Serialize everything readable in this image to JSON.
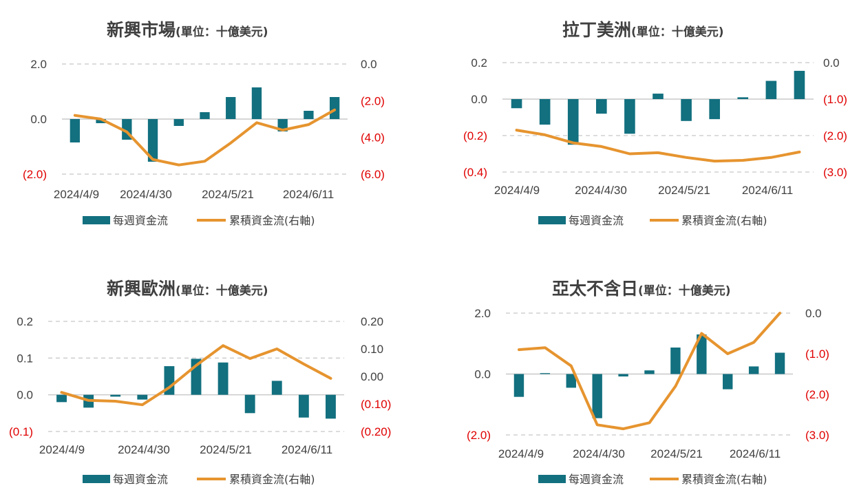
{
  "colors": {
    "bar": "#12707f",
    "line": "#e6942f",
    "negative": "#e00000",
    "text": "#404040"
  },
  "chart_data": [
    {
      "type": "bar+line",
      "title": "新興市場",
      "subtitle": "(單位：十億美元)",
      "legend": [
        "每週資金流",
        "累積資金流(右軸)"
      ],
      "legend_position": "bottom",
      "xlabels": [
        "2024/4/9",
        "2024/4/30",
        "2024/5/21",
        "2024/6/11"
      ],
      "bar_values": [
        -0.85,
        -0.15,
        -0.75,
        -1.55,
        -0.25,
        0.25,
        0.8,
        1.15,
        -0.45,
        0.3,
        0.8
      ],
      "line_values": [
        -2.8,
        -3.0,
        -3.7,
        -5.2,
        -5.5,
        -5.3,
        -4.3,
        -3.2,
        -3.6,
        -3.3,
        -2.5
      ],
      "left_axis": {
        "min": -2.0,
        "max": 2.0,
        "ticks": [
          "2.0",
          "0.0",
          "(2.0)"
        ]
      },
      "right_axis": {
        "min": -6.0,
        "max": 0.0,
        "ticks": [
          "0.0",
          "(2.0)",
          "(4.0)",
          "(6.0)"
        ]
      }
    },
    {
      "type": "bar+line",
      "title": "拉丁美洲",
      "subtitle": "(單位：十億美元)",
      "legend": [
        "每週資金流",
        "累積資金流(右軸)"
      ],
      "legend_position": "bottom",
      "xlabels": [
        "2024/4/9",
        "2024/4/30",
        "2024/5/21",
        "2024/6/11"
      ],
      "bar_values": [
        -0.05,
        -0.14,
        -0.25,
        -0.08,
        -0.19,
        0.03,
        -0.12,
        -0.11,
        0.01,
        0.1,
        0.155
      ],
      "line_values": [
        -1.85,
        -1.98,
        -2.2,
        -2.3,
        -2.5,
        -2.47,
        -2.6,
        -2.7,
        -2.68,
        -2.6,
        -2.45
      ],
      "left_axis": {
        "min": -0.4,
        "max": 0.2,
        "ticks": [
          "0.2",
          "0.0",
          "(0.2)",
          "(0.4)"
        ]
      },
      "right_axis": {
        "min": -3.0,
        "max": 0.0,
        "ticks": [
          "0.0",
          "(1.0)",
          "(2.0)",
          "(3.0)"
        ]
      }
    },
    {
      "type": "bar+line",
      "title": "新興歐洲",
      "subtitle": "(單位：十億美元)",
      "legend": [
        "每週資金流",
        "累積資金流(右軸)"
      ],
      "legend_position": "bottom",
      "xlabels": [
        "2024/4/9",
        "2024/4/30",
        "2024/5/21",
        "2024/6/11"
      ],
      "bar_values": [
        -0.02,
        -0.035,
        -0.005,
        -0.013,
        0.078,
        0.098,
        0.088,
        -0.05,
        0.038,
        -0.062,
        -0.065
      ],
      "line_values": [
        -0.058,
        -0.087,
        -0.09,
        -0.103,
        -0.04,
        0.04,
        0.112,
        0.065,
        0.1,
        0.045,
        -0.007
      ],
      "left_axis": {
        "min": -0.1,
        "max": 0.2,
        "ticks": [
          "0.2",
          "0.1",
          "0.0",
          "(0.1)"
        ]
      },
      "right_axis": {
        "min": -0.2,
        "max": 0.2,
        "ticks": [
          "0.20",
          "0.10",
          "0.00",
          "(0.10)",
          "(0.20)"
        ]
      }
    },
    {
      "type": "bar+line",
      "title": "亞太不含日",
      "subtitle": "(單位：十億美元)",
      "legend": [
        "每週資金流",
        "累積資金流(右軸)"
      ],
      "legend_position": "bottom",
      "xlabels": [
        "2024/4/9",
        "2024/4/30",
        "2024/5/21",
        "2024/6/11"
      ],
      "bar_values": [
        -0.75,
        0.03,
        -0.45,
        -1.45,
        -0.08,
        0.12,
        0.87,
        1.3,
        -0.5,
        0.25,
        0.7
      ],
      "line_values": [
        -0.9,
        -0.85,
        -1.3,
        -2.75,
        -2.85,
        -2.7,
        -1.8,
        -0.5,
        -1.0,
        -0.72,
        0.0
      ],
      "left_axis": {
        "min": -2.0,
        "max": 2.0,
        "ticks": [
          "2.0",
          "0.0",
          "(2.0)"
        ]
      },
      "right_axis": {
        "min": -3.0,
        "max": 0.0,
        "ticks": [
          "0.0",
          "(1.0)",
          "(2.0)",
          "(3.0)"
        ]
      }
    }
  ]
}
